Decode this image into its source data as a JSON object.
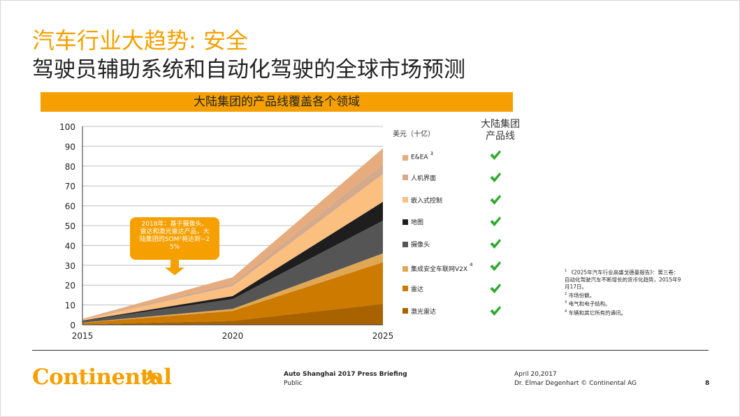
{
  "slide": {
    "title_line1": "汽车行业大趋势: 安全",
    "title_line2": "驾驶员辅助系统和自动化驾驶的全球市场预测",
    "banner": "大陆集团的产品线覆盖各个领域",
    "product_line_header_1": "大陆集团",
    "product_line_header_2": "产品线",
    "check_icon": "check-icon"
  },
  "chart_data": {
    "type": "area",
    "stacked": true,
    "unit_label": "美元（十亿）",
    "x": [
      2015,
      2020,
      2025
    ],
    "x_tick_labels": [
      "2015",
      "2020",
      "2025"
    ],
    "ylim": [
      0,
      100
    ],
    "y_ticks": [
      0,
      10,
      20,
      30,
      40,
      50,
      60,
      70,
      80,
      90,
      100
    ],
    "grid": true,
    "legend_placement": "right",
    "series": [
      {
        "name": "激光雷达",
        "color": "#a86300",
        "values": [
          0.2,
          2,
          10.5
        ]
      },
      {
        "name": "雷达",
        "color": "#cc7a00",
        "values": [
          0.8,
          5,
          21
        ]
      },
      {
        "name": "集成安全车联网V2X",
        "sup": "4",
        "color": "#e0a855",
        "values": [
          0.1,
          1,
          4.5
        ]
      },
      {
        "name": "摄像头",
        "color": "#555555",
        "values": [
          0.8,
          5,
          16.5
        ]
      },
      {
        "name": "地图",
        "color": "#1e1e1e",
        "values": [
          0.2,
          1.5,
          9.5
        ]
      },
      {
        "name": "嵌入式控制",
        "color": "#fbbf80",
        "values": [
          0.4,
          5,
          14
        ]
      },
      {
        "name": "人机界面",
        "color": "#d5a98c",
        "values": [
          0.2,
          1.5,
          5
        ]
      },
      {
        "name": "E&EA",
        "sup": "3",
        "color": "#e6ac7e",
        "values": [
          0.3,
          3,
          8
        ]
      }
    ],
    "annotation": {
      "text": "2018年：基于摄像头、雷达和激光雷达产品，大陆集团的SOM²将达到~25%",
      "color": "#f5a000"
    }
  },
  "footnotes": [
    {
      "n": "1",
      "text": "《2025年汽车行业高盛戈德曼报告》：第三卷：自动化驾驶汽车不断增长的货币化趋势，2015年9月17日。"
    },
    {
      "n": "2",
      "text": "市场份额。"
    },
    {
      "n": "3",
      "text": "电气和电子结构。"
    },
    {
      "n": "4",
      "text": "车辆和其它所有的通讯。"
    }
  ],
  "footer": {
    "logo_text": "Continental",
    "logo_icon": "horse-icon",
    "event": "Auto Shanghai 2017 Press Briefing",
    "classification": "Public",
    "date": "April 20,2017",
    "presenter": "Dr. Elmar Degenhart © Continental AG",
    "page": "8"
  }
}
